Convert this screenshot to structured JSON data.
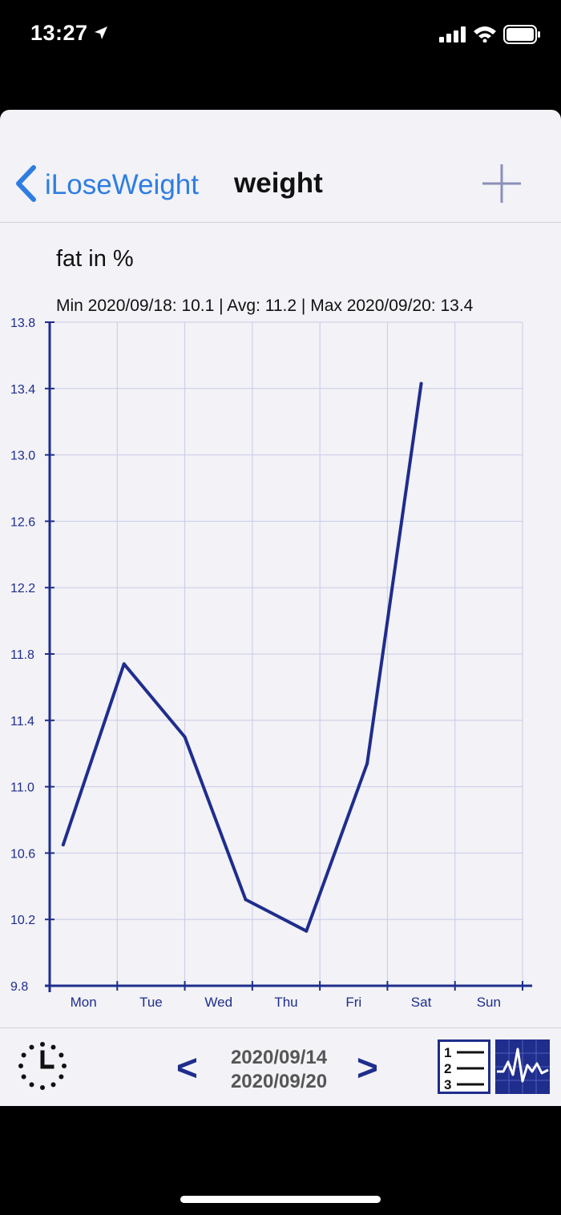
{
  "status_bar": {
    "time": "13:27"
  },
  "nav": {
    "back_label": "iLoseWeight",
    "title": "weight"
  },
  "chart_header": {
    "title": "fat in %",
    "stats": "Min 2020/09/18: 10.1  |  Avg: 11.2  |  Max 2020/09/20: 13.4"
  },
  "chart_data": {
    "type": "line",
    "title": "fat in %",
    "categories": [
      "Mon",
      "Tue",
      "Wed",
      "Thu",
      "Fri",
      "Sat",
      "Sun"
    ],
    "x": [
      0.2,
      1.1,
      2.0,
      2.9,
      3.8,
      4.7,
      5.5
    ],
    "values": [
      10.65,
      11.74,
      11.3,
      10.32,
      10.13,
      11.14,
      13.43
    ],
    "ylim": [
      9.8,
      13.8
    ],
    "yticks": [
      "13.8",
      "13.4",
      "13.0",
      "12.6",
      "12.2",
      "11.8",
      "11.4",
      "11.0",
      "10.6",
      "10.2",
      "9.8"
    ],
    "grid": true,
    "line_color": "#1f2d8c",
    "grid_color": "#c9cbe6"
  },
  "footer": {
    "prev_label": "<",
    "next_label": ">",
    "date_start": "2020/09/14",
    "date_end": "2020/09/20",
    "list_icon_digits": [
      "1",
      "2",
      "3"
    ]
  },
  "colors": {
    "accent": "#2f7de1",
    "chart_navy": "#1f2d8c",
    "sheet_bg": "#f2f2f7"
  }
}
